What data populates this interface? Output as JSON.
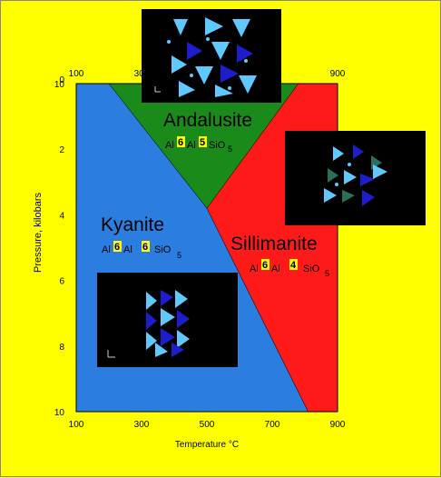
{
  "chart_data": {
    "type": "phase-diagram",
    "xlabel": "Temperature °C",
    "ylabel": "Pressure, kilobars",
    "x_ticks": [
      100,
      300,
      500,
      700,
      900
    ],
    "x_ticks_top": [
      100,
      300,
      900
    ],
    "y_ticks_left_top": [
      "0"
    ],
    "y_ticks": [
      10,
      2,
      4,
      6,
      8,
      10
    ],
    "xlim": [
      100,
      900
    ],
    "ylim": [
      0,
      10
    ],
    "triple_point": {
      "temperature_c": 500,
      "pressure_kbar": 3.8
    },
    "phases": [
      {
        "name": "Andalusite",
        "formula": {
          "el1": "Al",
          "cn1": "6",
          "el2": "Al",
          "cn2": "5",
          "rest": "SiO",
          "sub": "5"
        },
        "color": "#1a8a1a",
        "boundary": [
          [
            200,
            0
          ],
          [
            780,
            0
          ],
          [
            500,
            3.8
          ]
        ]
      },
      {
        "name": "Kyanite",
        "formula": {
          "el1": "Al",
          "cn1": "6",
          "el2": "Al",
          "cn2": "6",
          "rest": "SiO",
          "sub": "5"
        },
        "color": "#2c7de0",
        "boundary": [
          [
            100,
            0
          ],
          [
            200,
            0
          ],
          [
            500,
            3.8
          ],
          [
            810,
            10
          ],
          [
            100,
            10
          ]
        ]
      },
      {
        "name": "Sillimanite",
        "formula": {
          "el1": "Al",
          "cn1": "6",
          "el2": "Al",
          "cn2": "4",
          "rest": "SiO",
          "sub": "5"
        },
        "color": "#ff1a1a",
        "boundary": [
          [
            780,
            0
          ],
          [
            900,
            0
          ],
          [
            900,
            10
          ],
          [
            810,
            10
          ],
          [
            500,
            3.8
          ]
        ]
      }
    ]
  },
  "insets": [
    {
      "id": "andalusite-structure",
      "description_icon": "crystal-structure-icon"
    },
    {
      "id": "sillimanite-structure",
      "description_icon": "crystal-structure-icon"
    },
    {
      "id": "kyanite-structure",
      "description_icon": "crystal-structure-icon"
    }
  ],
  "colors": {
    "background": "#ffff00",
    "kyanite": "#2c7de0",
    "andalusite": "#1a8a1a",
    "sillimanite": "#ff1a1a",
    "coordination_highlight": "#ffff00",
    "inset_bg": "#000000",
    "crystal_light": "#5fc8ff",
    "crystal_dark": "#1d1dcc"
  }
}
